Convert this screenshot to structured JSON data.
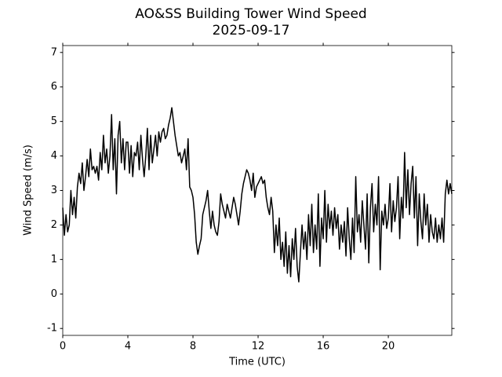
{
  "chart_data": {
    "type": "line",
    "title": "AO&SS Building Tower Wind Speed",
    "subtitle": "2025-09-17",
    "x_label": "Time (UTC)",
    "y_label": "Wind Speed (m/s)",
    "color": "#000000",
    "xlim": [
      0,
      23.9
    ],
    "ylim": [
      -1.2,
      7.2
    ],
    "xticks": [
      0,
      4,
      8,
      12,
      16,
      20
    ],
    "yticks": [
      -1,
      0,
      1,
      2,
      3,
      4,
      5,
      6,
      7
    ],
    "x": [
      0,
      0.1,
      0.2,
      0.3,
      0.4,
      0.5,
      0.6,
      0.7,
      0.8,
      0.9,
      1,
      1.1,
      1.2,
      1.3,
      1.4,
      1.5,
      1.6,
      1.7,
      1.8,
      1.9,
      2,
      2.1,
      2.2,
      2.3,
      2.4,
      2.5,
      2.6,
      2.7,
      2.8,
      2.9,
      3,
      3.1,
      3.2,
      3.3,
      3.4,
      3.5,
      3.6,
      3.7,
      3.8,
      3.9,
      4,
      4.1,
      4.2,
      4.3,
      4.4,
      4.5,
      4.6,
      4.7,
      4.8,
      4.9,
      5,
      5.1,
      5.2,
      5.3,
      5.4,
      5.5,
      5.6,
      5.7,
      5.8,
      5.9,
      6,
      6.1,
      6.2,
      6.3,
      6.4,
      6.5,
      6.6,
      6.7,
      6.8,
      6.9,
      7,
      7.1,
      7.2,
      7.3,
      7.4,
      7.5,
      7.6,
      7.7,
      7.8,
      7.9,
      8,
      8.1,
      8.2,
      8.3,
      8.4,
      8.5,
      8.6,
      8.7,
      8.8,
      8.9,
      9,
      9.1,
      9.2,
      9.3,
      9.4,
      9.5,
      9.6,
      9.7,
      9.8,
      9.9,
      10,
      10.1,
      10.2,
      10.3,
      10.4,
      10.5,
      10.6,
      10.7,
      10.8,
      10.9,
      11,
      11.1,
      11.2,
      11.3,
      11.4,
      11.5,
      11.6,
      11.7,
      11.8,
      11.9,
      12,
      12.1,
      12.2,
      12.3,
      12.4,
      12.5,
      12.6,
      12.7,
      12.8,
      12.9,
      13,
      13.1,
      13.2,
      13.3,
      13.4,
      13.5,
      13.6,
      13.7,
      13.8,
      13.9,
      14,
      14.1,
      14.2,
      14.3,
      14.4,
      14.5,
      14.6,
      14.7,
      14.8,
      14.9,
      15,
      15.1,
      15.2,
      15.3,
      15.4,
      15.5,
      15.6,
      15.7,
      15.8,
      15.9,
      16,
      16.1,
      16.2,
      16.3,
      16.4,
      16.5,
      16.6,
      16.7,
      16.8,
      16.9,
      17,
      17.1,
      17.2,
      17.3,
      17.4,
      17.5,
      17.6,
      17.7,
      17.8,
      17.9,
      18,
      18.1,
      18.2,
      18.3,
      18.4,
      18.5,
      18.6,
      18.7,
      18.8,
      18.9,
      19,
      19.1,
      19.2,
      19.3,
      19.4,
      19.5,
      19.6,
      19.7,
      19.8,
      19.9,
      20,
      20.1,
      20.2,
      20.3,
      20.4,
      20.5,
      20.6,
      20.7,
      20.8,
      20.9,
      21,
      21.1,
      21.2,
      21.3,
      21.4,
      21.5,
      21.6,
      21.7,
      21.8,
      21.9,
      22,
      22.1,
      22.2,
      22.3,
      22.4,
      22.5,
      22.6,
      22.7,
      22.8,
      22.9,
      23,
      23.1,
      23.2,
      23.3,
      23.4,
      23.5,
      23.6,
      23.7,
      23.8,
      23.9
    ],
    "values": [
      2.5,
      1.7,
      2.3,
      1.8,
      2.0,
      3.0,
      2.3,
      2.8,
      2.2,
      3.1,
      3.5,
      3.2,
      3.8,
      3.0,
      3.4,
      3.9,
      3.4,
      4.2,
      3.6,
      3.7,
      3.5,
      3.7,
      3.3,
      4.1,
      3.6,
      4.6,
      3.8,
      4.2,
      3.5,
      4.0,
      5.2,
      3.6,
      4.5,
      2.9,
      4.6,
      5.0,
      3.8,
      4.5,
      3.6,
      4.4,
      4.4,
      3.5,
      4.3,
      3.4,
      4.1,
      4.0,
      4.4,
      3.6,
      4.6,
      3.9,
      3.4,
      4.0,
      4.8,
      3.6,
      4.6,
      3.8,
      4.2,
      4.6,
      4.0,
      4.7,
      4.4,
      4.7,
      4.8,
      4.5,
      4.6,
      4.9,
      5.1,
      5.4,
      5.0,
      4.6,
      4.3,
      4.0,
      4.1,
      3.8,
      4.0,
      4.2,
      3.6,
      4.5,
      3.1,
      3.0,
      2.8,
      2.3,
      1.5,
      1.15,
      1.4,
      1.6,
      2.3,
      2.5,
      2.7,
      3.0,
      2.4,
      1.9,
      2.4,
      2.0,
      1.8,
      1.7,
      2.1,
      2.9,
      2.6,
      2.4,
      2.2,
      2.6,
      2.4,
      2.2,
      2.5,
      2.8,
      2.6,
      2.3,
      2.0,
      2.4,
      2.9,
      3.2,
      3.4,
      3.6,
      3.5,
      3.3,
      3.0,
      3.5,
      2.8,
      3.1,
      3.2,
      3.3,
      3.4,
      3.2,
      3.3,
      2.8,
      2.5,
      2.3,
      2.8,
      2.4,
      1.2,
      2.0,
      1.4,
      2.2,
      1.0,
      1.5,
      0.8,
      1.8,
      0.6,
      1.4,
      0.5,
      1.6,
      1.0,
      1.9,
      0.8,
      0.35,
      1.2,
      2.0,
      1.3,
      1.8,
      1.0,
      2.3,
      1.4,
      2.6,
      1.2,
      2.0,
      1.3,
      2.9,
      0.8,
      2.2,
      1.6,
      3.0,
      1.5,
      2.6,
      1.9,
      2.4,
      1.7,
      2.5,
      1.9,
      2.3,
      1.3,
      2.0,
      1.5,
      2.1,
      1.1,
      2.5,
      1.6,
      1.0,
      2.2,
      1.2,
      3.4,
      1.8,
      2.3,
      1.5,
      2.7,
      2.0,
      1.3,
      2.9,
      0.9,
      2.5,
      3.2,
      1.8,
      2.6,
      2.0,
      3.4,
      0.7,
      2.4,
      2.0,
      2.6,
      1.9,
      2.2,
      3.2,
      1.8,
      2.7,
      2.1,
      2.5,
      3.4,
      1.6,
      2.8,
      2.2,
      4.1,
      2.5,
      3.6,
      2.3,
      3.2,
      3.7,
      2.2,
      3.4,
      1.4,
      2.9,
      2.1,
      1.6,
      2.9,
      2.0,
      2.6,
      1.5,
      2.3,
      1.8,
      1.6,
      2.2,
      1.5,
      2.0,
      1.6,
      2.2,
      1.5,
      2.9,
      3.3,
      2.9,
      3.2,
      2.9
    ]
  }
}
